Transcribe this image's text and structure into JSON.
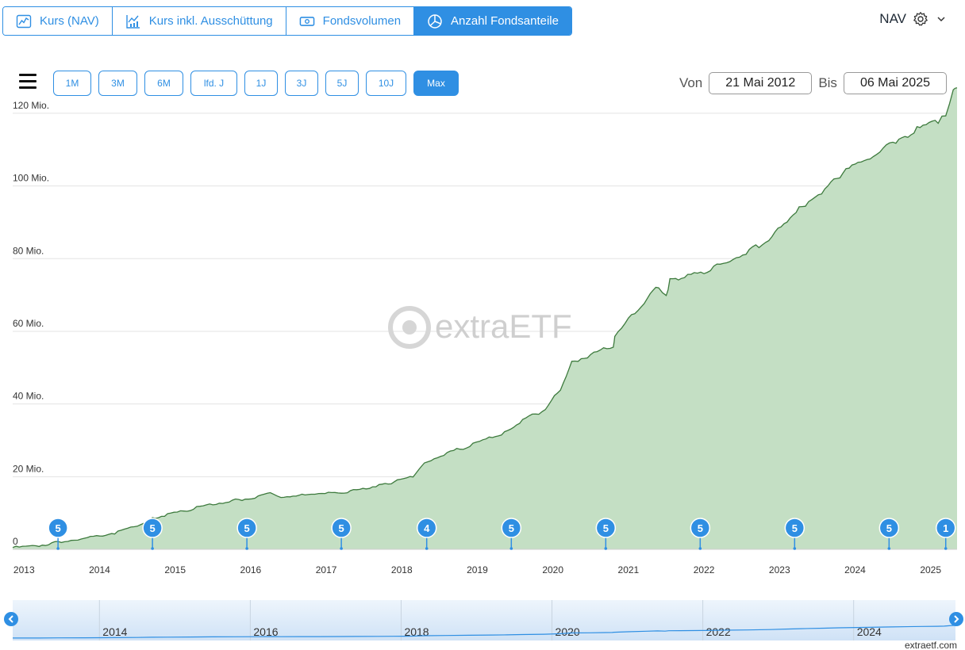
{
  "tabs": [
    {
      "label": "Kurs (NAV)",
      "icon": "line-chart-icon",
      "active": false
    },
    {
      "label": "Kurs inkl. Ausschüttung",
      "icon": "bar-line-chart-icon",
      "active": false
    },
    {
      "label": "Fondsvolumen",
      "icon": "money-icon",
      "active": false
    },
    {
      "label": "Anzahl Fondsanteile",
      "icon": "pie-chart-icon",
      "active": true
    }
  ],
  "price_type": {
    "label": "NAV"
  },
  "ranges": [
    {
      "label": "1M",
      "active": false
    },
    {
      "label": "3M",
      "active": false
    },
    {
      "label": "6M",
      "active": false
    },
    {
      "label": "lfd. J",
      "active": false
    },
    {
      "label": "1J",
      "active": false
    },
    {
      "label": "3J",
      "active": false
    },
    {
      "label": "5J",
      "active": false
    },
    {
      "label": "10J",
      "active": false
    },
    {
      "label": "Max",
      "active": true
    }
  ],
  "dates": {
    "from_label": "Von",
    "from_value": "21 Mai 2012",
    "to_label": "Bis",
    "to_value": "06 Mai 2025"
  },
  "watermark": "extraETF",
  "credit": "extraetf.com",
  "colors": {
    "accent": "#2f8fe3",
    "area_fill": "#c4dfc4",
    "area_line": "#3d7a3d",
    "grid": "#e3e3e3"
  },
  "chart_data": {
    "type": "area",
    "x_start": 2012.85,
    "x_end": 2025.35,
    "ylim": [
      0,
      125000000
    ],
    "yticks": [
      {
        "value": 0,
        "label": "0"
      },
      {
        "value": 20000000,
        "label": "20 Mio."
      },
      {
        "value": 40000000,
        "label": "40 Mio."
      },
      {
        "value": 60000000,
        "label": "60 Mio."
      },
      {
        "value": 80000000,
        "label": "80 Mio."
      },
      {
        "value": 100000000,
        "label": "100 Mio."
      },
      {
        "value": 120000000,
        "label": "120 Mio."
      }
    ],
    "xticks": [
      "2013",
      "2014",
      "2015",
      "2016",
      "2017",
      "2018",
      "2019",
      "2020",
      "2021",
      "2022",
      "2023",
      "2024",
      "2025"
    ],
    "series": [
      {
        "x": [
          2012.85,
          2013.2,
          2013.45,
          2013.8,
          2014.2,
          2014.5,
          2014.7,
          2014.9,
          2015.2,
          2015.5,
          2015.8,
          2016.1,
          2016.3,
          2016.4,
          2016.8,
          2016.9,
          2017.2,
          2017.4,
          2017.7,
          2017.9,
          2018.15,
          2018.3,
          2018.6,
          2018.9,
          2019.2,
          2019.4,
          2019.6,
          2019.9,
          2020.1,
          2020.25,
          2020.5,
          2020.8,
          2020.82,
          2021.0,
          2021.25,
          2021.4,
          2021.5,
          2021.55,
          2021.7,
          2022.0,
          2022.3,
          2022.6,
          2022.9,
          2023.1,
          2023.3,
          2023.6,
          2023.8,
          2024.2,
          2024.5,
          2024.9,
          2025.1,
          2025.2,
          2025.3,
          2025.35
        ],
        "y": [
          500000,
          1000000,
          2000000,
          3000000,
          4500000,
          6500000,
          8500000,
          9500000,
          11000000,
          12500000,
          13500000,
          14500000,
          15500000,
          14500000,
          15000000,
          15200000,
          15500000,
          16500000,
          17500000,
          18500000,
          20000000,
          24000000,
          26500000,
          28500000,
          31000000,
          32500000,
          35500000,
          38500000,
          44000000,
          51500000,
          53500000,
          56000000,
          59000000,
          63500000,
          69000000,
          72500000,
          70000000,
          74000000,
          74500000,
          76500000,
          79000000,
          82000000,
          86000000,
          90500000,
          94500000,
          99000000,
          103000000,
          108000000,
          112000000,
          116500000,
          118000000,
          120000000,
          126000000,
          127000000
        ]
      }
    ],
    "events": [
      {
        "x": 2013.45,
        "label": "5"
      },
      {
        "x": 2014.7,
        "label": "5"
      },
      {
        "x": 2015.95,
        "label": "5"
      },
      {
        "x": 2017.2,
        "label": "5"
      },
      {
        "x": 2018.33,
        "label": "4"
      },
      {
        "x": 2019.45,
        "label": "5"
      },
      {
        "x": 2020.7,
        "label": "5"
      },
      {
        "x": 2021.95,
        "label": "5"
      },
      {
        "x": 2023.2,
        "label": "5"
      },
      {
        "x": 2024.45,
        "label": "5"
      },
      {
        "x": 2025.2,
        "label": "1"
      }
    ],
    "navigator_ticks": [
      "2014",
      "2016",
      "2018",
      "2020",
      "2022",
      "2024"
    ]
  }
}
